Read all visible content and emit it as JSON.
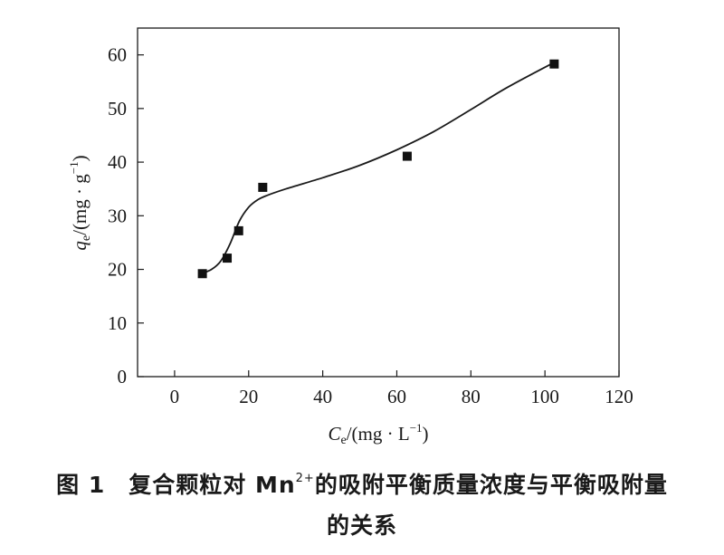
{
  "chart_data": {
    "type": "scatter",
    "xlabel": {
      "symbol": "C",
      "sub": "e",
      "unit_open": "/(mg · L",
      "exp": "−1",
      "unit_close": ")"
    },
    "ylabel": {
      "symbol": "q",
      "sub": "e",
      "unit_open": "/(mg · g",
      "exp": "−1",
      "unit_close": ")"
    },
    "xlim": [
      -10,
      120
    ],
    "ylim": [
      0,
      65
    ],
    "x_ticks": [
      0,
      20,
      40,
      60,
      80,
      100,
      120
    ],
    "y_ticks": [
      0,
      10,
      20,
      30,
      40,
      50,
      60
    ],
    "grid": false,
    "series": [
      {
        "marker": "square",
        "x": [
          7.5,
          14.2,
          17.3,
          23.8,
          62.8,
          102.5
        ],
        "y": [
          19.2,
          22.1,
          27.2,
          35.3,
          41.1,
          58.3
        ]
      }
    ],
    "fit_curve": {
      "x": [
        7.5,
        10,
        12.5,
        15,
        17.5,
        20,
        22.5,
        25,
        30,
        40,
        50,
        60,
        70,
        80,
        90,
        102.5
      ],
      "y": [
        19.3,
        20.0,
        21.6,
        24.8,
        29.0,
        31.6,
        33.0,
        33.8,
        35.0,
        37.1,
        39.4,
        42.3,
        45.7,
        49.8,
        54.0,
        58.6
      ]
    }
  },
  "caption": {
    "line1_prefix": "图 1　复合颗粒对 Mn",
    "line1_sup": "2+",
    "line1_suffix": "的吸附平衡质量浓度与平衡吸附量",
    "line2": "的关系"
  }
}
